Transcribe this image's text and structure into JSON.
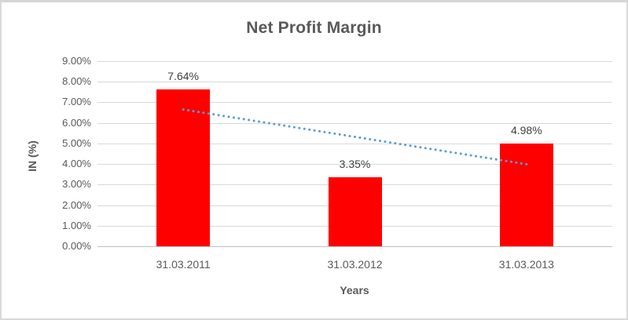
{
  "chart_data": {
    "type": "bar",
    "title": "Net Profit Margin",
    "xlabel": "Years",
    "ylabel": "IN (%)",
    "categories": [
      "31.03.2011",
      "31.03.2012",
      "31.03.2013"
    ],
    "values": [
      7.64,
      3.35,
      4.98
    ],
    "data_labels": [
      "7.64%",
      "3.35%",
      "4.98%"
    ],
    "ylim": [
      0,
      9
    ],
    "ytick_step": 1,
    "ytick_labels": [
      "0.00%",
      "1.00%",
      "2.00%",
      "3.00%",
      "4.00%",
      "5.00%",
      "6.00%",
      "7.00%",
      "8.00%",
      "9.00%"
    ],
    "grid": true,
    "legend": "none",
    "bar_color": "#FF0000",
    "trendline": {
      "type": "linear",
      "style": "dotted",
      "color": "#5B9BD5",
      "start": {
        "category_index": 0,
        "value": 6.65
      },
      "end": {
        "category_index": 2,
        "value": 3.99
      }
    },
    "colors": {
      "title": "#595959",
      "axis_text": "#595959",
      "data_label": "#404040",
      "gridline": "#D9D9D9",
      "axis_line": "#BFBFBF"
    }
  }
}
